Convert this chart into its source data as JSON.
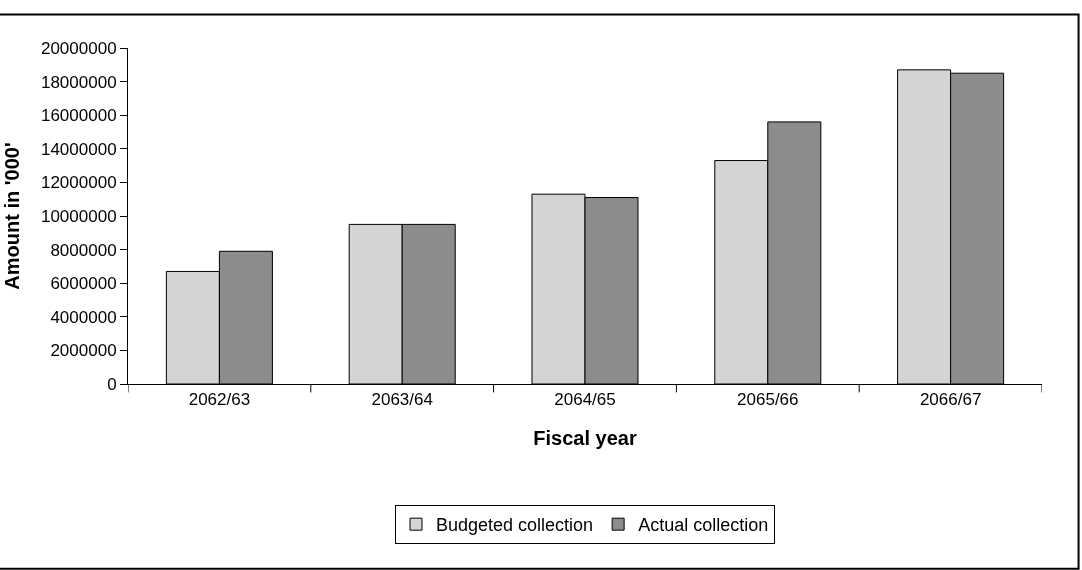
{
  "chart_data": {
    "type": "bar",
    "xlabel": "Fiscal year",
    "ylabel": "Amount in '000'",
    "categories": [
      "2062/63",
      "2063/64",
      "2064/65",
      "2065/66",
      "2066/67"
    ],
    "series": [
      {
        "name": "Budgeted collection",
        "color": "#d4d4d4",
        "values": [
          6700000,
          9500000,
          11300000,
          13300000,
          18700000
        ]
      },
      {
        "name": "Actual collection",
        "color": "#8c8c8c",
        "values": [
          7900000,
          9500000,
          11100000,
          15600000,
          18500000
        ]
      }
    ],
    "ylim": [
      0,
      20000000
    ],
    "yticks": [
      0,
      2000000,
      4000000,
      6000000,
      8000000,
      10000000,
      12000000,
      14000000,
      16000000,
      18000000,
      20000000
    ],
    "legend": "bottom"
  }
}
